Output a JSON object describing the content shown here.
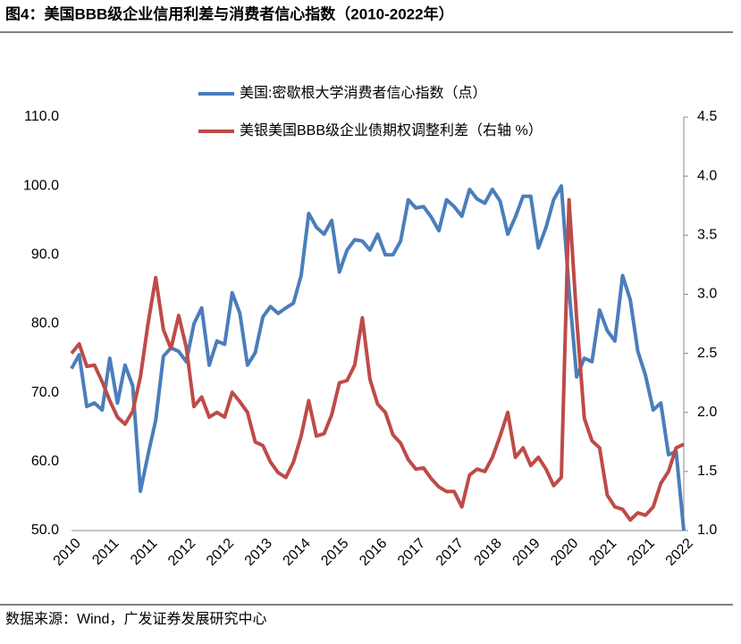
{
  "chart_data": {
    "type": "line",
    "title": "图4：美国BBB级企业信用利差与消费者信心指数（2010-2022年）",
    "source": "数据来源：Wind，广发证券发展研究中心",
    "categories": [
      "2010",
      null,
      null,
      null,
      null,
      "2011",
      null,
      null,
      null,
      null,
      "2011",
      null,
      null,
      null,
      null,
      "2012",
      null,
      null,
      null,
      null,
      "2012",
      null,
      null,
      null,
      null,
      "2013",
      null,
      null,
      null,
      null,
      "2014",
      null,
      null,
      null,
      null,
      "2015",
      null,
      null,
      null,
      null,
      "2016",
      null,
      null,
      null,
      null,
      "2017",
      null,
      null,
      null,
      null,
      "2017",
      null,
      null,
      null,
      null,
      "2018",
      null,
      null,
      null,
      null,
      "2019",
      null,
      null,
      null,
      null,
      "2020",
      null,
      null,
      null,
      null,
      "2021",
      null,
      null,
      null,
      null,
      "2021",
      null,
      null,
      null,
      null,
      "2022"
    ],
    "series": [
      {
        "name": "美国:密歇根大学消费者信心指数（点）",
        "color": "#4a7ebb",
        "values": [
          73.5,
          75.5,
          68,
          68.5,
          67.5,
          75,
          68.5,
          74,
          71,
          55.7,
          61,
          66,
          75.3,
          76.5,
          76,
          74.5,
          80,
          82.3,
          74,
          77.5,
          77,
          84.5,
          81.5,
          74,
          75.8,
          81,
          82.5,
          81.5,
          82.3,
          83,
          87,
          96,
          94,
          93,
          95,
          87.5,
          90.7,
          92.2,
          92,
          90.7,
          93,
          90,
          90,
          92,
          98,
          96.8,
          97,
          95.5,
          93.5,
          98,
          97,
          95.6,
          99.5,
          98.1,
          97.5,
          99.5,
          97.8,
          93,
          95.5,
          98.5,
          98.5,
          91,
          94,
          98,
          100,
          85,
          72.3,
          75,
          74.5,
          82,
          79,
          77.5,
          87,
          83.5,
          76,
          72.5,
          67.5,
          68.5,
          61,
          61.5,
          50
        ]
      },
      {
        "name": "美银美国BBB级企业债期权调整利差（右轴 %）",
        "color": "#be4b48",
        "axis": "y2",
        "values": [
          2.5,
          2.58,
          2.39,
          2.4,
          2.26,
          2.1,
          1.96,
          1.9,
          2.01,
          2.3,
          2.75,
          3.14,
          2.7,
          2.54,
          2.82,
          2.55,
          2.05,
          2.13,
          1.96,
          2.0,
          1.96,
          2.17,
          2.09,
          2.0,
          1.75,
          1.72,
          1.58,
          1.49,
          1.45,
          1.58,
          1.8,
          2.1,
          1.8,
          1.82,
          1.98,
          2.25,
          2.27,
          2.4,
          2.8,
          2.28,
          2.07,
          2.0,
          1.81,
          1.74,
          1.6,
          1.52,
          1.53,
          1.44,
          1.37,
          1.33,
          1.33,
          1.2,
          1.47,
          1.52,
          1.5,
          1.62,
          1.8,
          2.0,
          1.62,
          1.7,
          1.55,
          1.62,
          1.52,
          1.38,
          1.45,
          3.8,
          2.8,
          1.95,
          1.76,
          1.7,
          1.3,
          1.2,
          1.18,
          1.09,
          1.15,
          1.13,
          1.2,
          1.4,
          1.5,
          1.7,
          1.73
        ]
      }
    ],
    "ylim": [
      50,
      110
    ],
    "yticks": [
      {
        "value": 50,
        "label": "50.0"
      },
      {
        "value": 60,
        "label": "60.0"
      },
      {
        "value": 70,
        "label": "70.0"
      },
      {
        "value": 80,
        "label": "80.0"
      },
      {
        "value": 90,
        "label": "90.0"
      },
      {
        "value": 100,
        "label": "100.0"
      },
      {
        "value": 110,
        "label": "110.0"
      }
    ],
    "y2lim": [
      1.0,
      4.5
    ],
    "y2ticks": [
      {
        "value": 1,
        "label": "1.0"
      },
      1.5,
      {
        "value": 2,
        "label": "2.0"
      },
      2.5,
      {
        "value": 3,
        "label": "3.0"
      },
      3.5,
      {
        "value": 4,
        "label": "4.0"
      },
      4.5
    ]
  }
}
